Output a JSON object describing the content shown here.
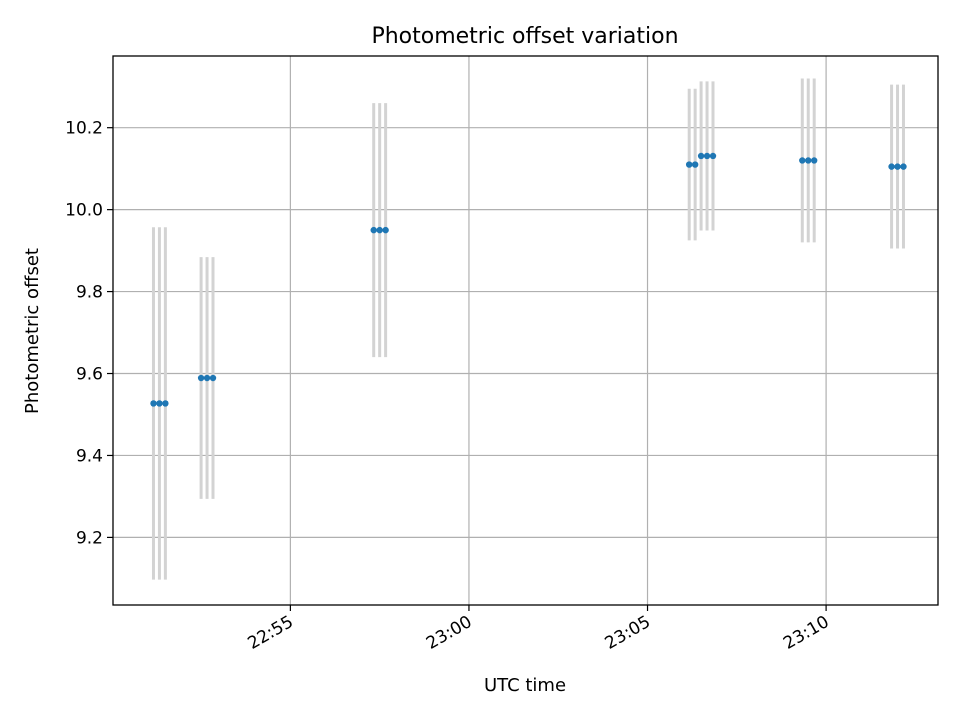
{
  "chart_data": {
    "type": "scatter",
    "title": "Photometric offset variation",
    "xlabel": "UTC time",
    "ylabel": "Photometric offset",
    "xlim": [
      "22:50:02",
      "23:13:08"
    ],
    "ylim": [
      9.035,
      10.375
    ],
    "x_ticks": [
      "22:55",
      "23:00",
      "23:05",
      "23:10"
    ],
    "y_ticks": [
      "9.2",
      "9.4",
      "9.6",
      "9.8",
      "10.0",
      "10.2"
    ],
    "grid": true,
    "legend": "none",
    "colors": {
      "points": "#1f77b4",
      "error_bars": "#d3d3d3"
    },
    "series": [
      {
        "x": [
          "22:51:10",
          "22:51:20",
          "22:51:30",
          "22:52:30",
          "22:52:40",
          "22:52:50",
          "22:57:20",
          "22:57:30",
          "22:57:40",
          "23:06:10",
          "23:06:20",
          "23:06:30",
          "23:06:40",
          "23:06:50",
          "23:09:20",
          "23:09:30",
          "23:09:40",
          "23:11:50",
          "23:12:00",
          "23:12:10"
        ],
        "y": [
          9.527,
          9.527,
          9.527,
          9.589,
          9.589,
          9.589,
          9.95,
          9.95,
          9.95,
          10.11,
          10.11,
          10.131,
          10.131,
          10.131,
          10.12,
          10.12,
          10.12,
          10.105,
          10.105,
          10.105
        ],
        "y_err": [
          0.43,
          0.43,
          0.43,
          0.295,
          0.295,
          0.295,
          0.31,
          0.31,
          0.31,
          0.185,
          0.185,
          0.182,
          0.182,
          0.182,
          0.2,
          0.2,
          0.2,
          0.2,
          0.2,
          0.2
        ]
      }
    ]
  }
}
